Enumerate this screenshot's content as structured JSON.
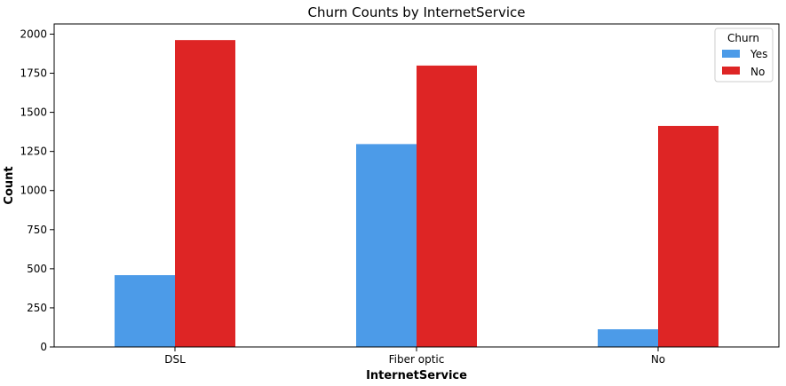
{
  "chart_data": {
    "type": "bar",
    "title": "Churn Counts by InternetService",
    "xlabel": "InternetService",
    "ylabel": "Count",
    "categories": [
      "DSL",
      "Fiber optic",
      "No"
    ],
    "series": [
      {
        "name": "Yes",
        "color": "#4C9BE8",
        "values": [
          459,
          1297,
          113
        ]
      },
      {
        "name": "No",
        "color": "#DE2525",
        "values": [
          1962,
          1799,
          1413
        ]
      }
    ],
    "ylim": [
      0,
      2065
    ],
    "yticks": [
      0,
      250,
      500,
      750,
      1000,
      1250,
      1500,
      1750,
      2000
    ],
    "ytick_labels": [
      "0",
      "250",
      "500",
      "750",
      "1000",
      "1250",
      "1500",
      "1750",
      "2000"
    ],
    "grid": false,
    "legend": {
      "title": "Churn",
      "placement": "top-right"
    }
  }
}
